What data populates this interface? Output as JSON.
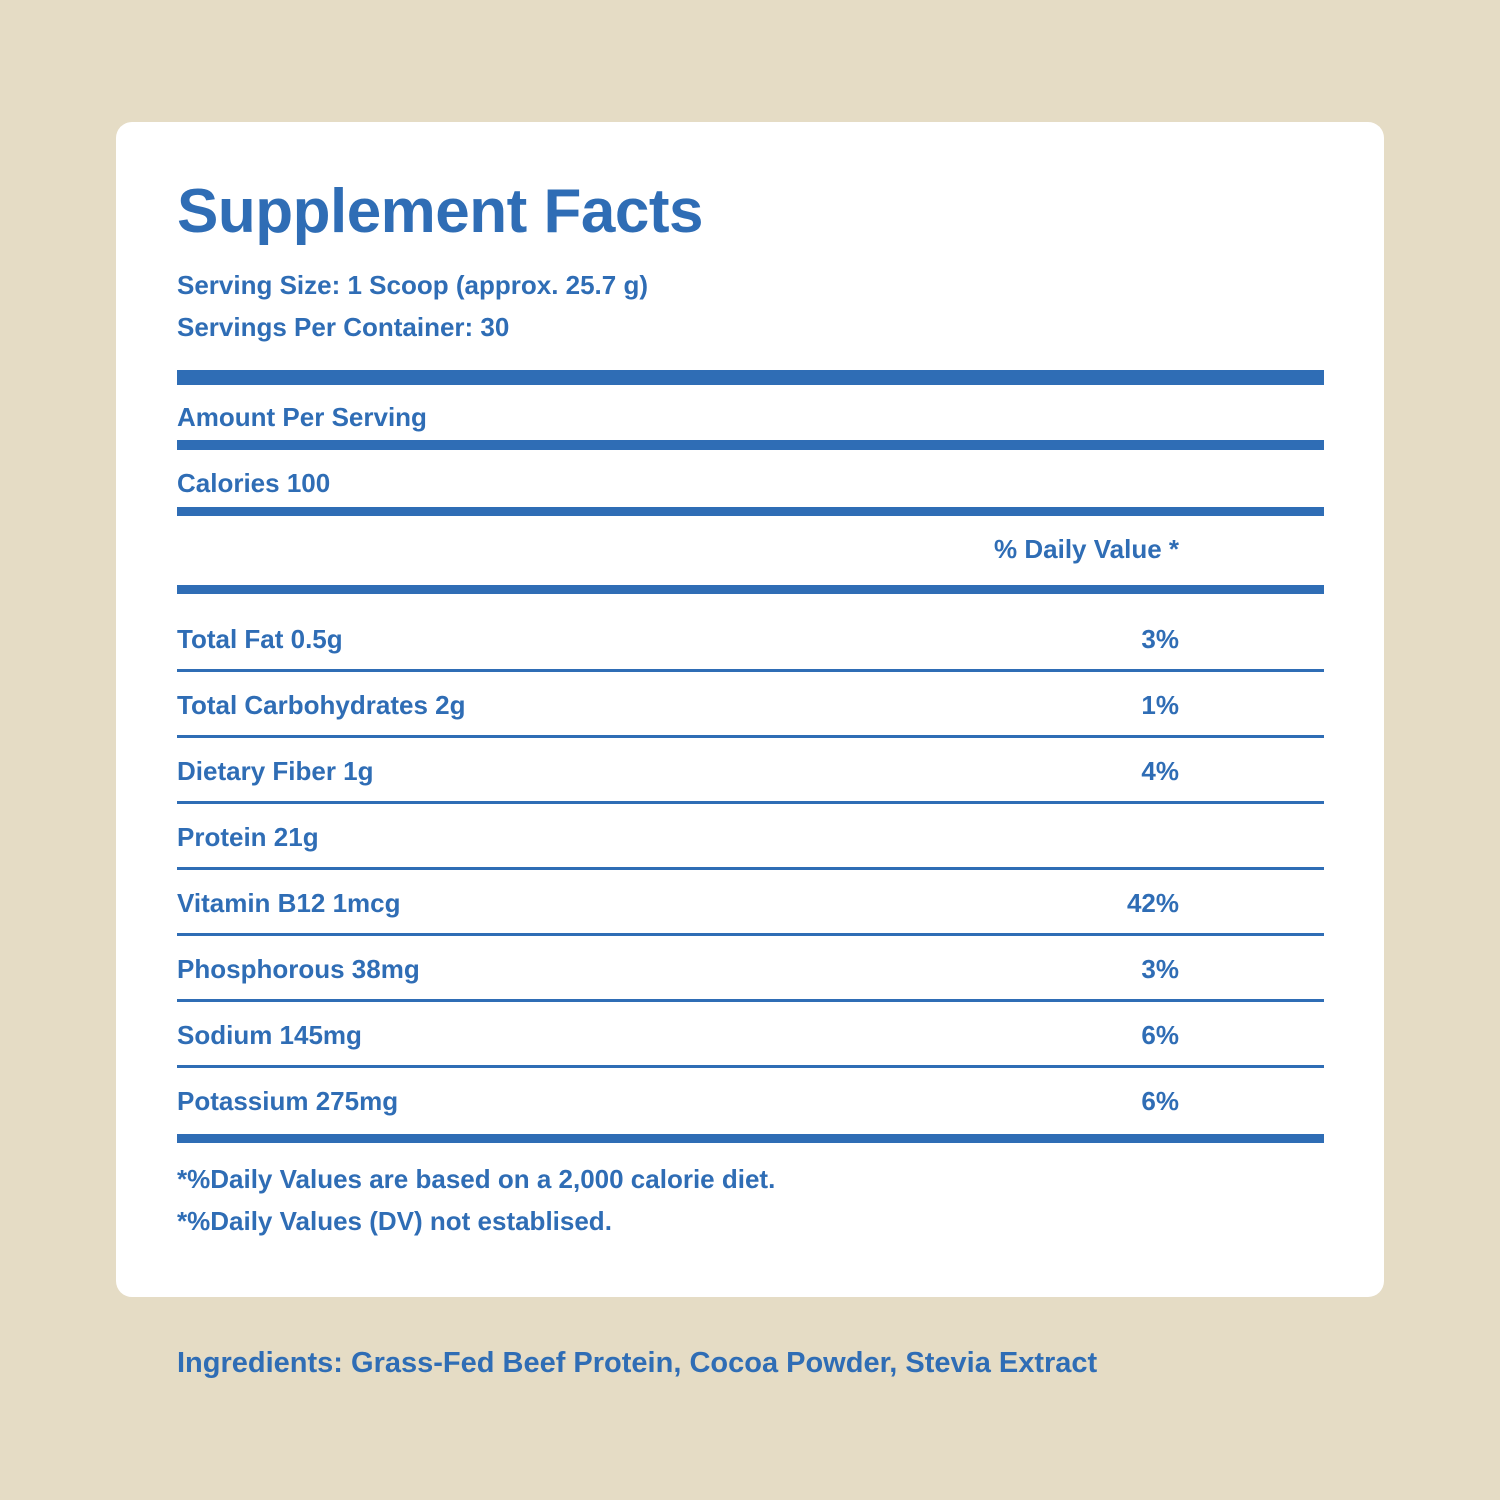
{
  "label": {
    "title": "Supplement Facts",
    "serving_size": "Serving Size: 1 Scoop (approx. 25.7 g)",
    "servings_per_container": "Servings Per Container: 30",
    "amount_per_serving": "Amount Per Serving",
    "calories": "Calories 100",
    "daily_value_header": "% Daily Value *",
    "nutrients": [
      {
        "name": "Total Fat 0.5g",
        "dv": "3%"
      },
      {
        "name": "Total Carbohydrates 2g",
        "dv": "1%"
      },
      {
        "name": "Dietary Fiber 1g",
        "dv": "4%"
      },
      {
        "name": "Protein 21g",
        "dv": ""
      },
      {
        "name": "Vitamin B12 1mcg",
        "dv": "42%"
      },
      {
        "name": "Phosphorous 38mg",
        "dv": "3%"
      },
      {
        "name": "Sodium 145mg",
        "dv": "6%"
      },
      {
        "name": "Potassium 275mg",
        "dv": "6%"
      }
    ],
    "footnotes": [
      "*%Daily Values are based on a 2,000 calorie diet.",
      "*%Daily Values (DV) not establised."
    ]
  },
  "ingredients": "Ingredients: Grass-Fed Beef Protein, Cocoa Powder, Stevia Extract",
  "colors": {
    "background": "#e5dcc5",
    "panel": "#ffffff",
    "accent": "#2f6db5"
  }
}
